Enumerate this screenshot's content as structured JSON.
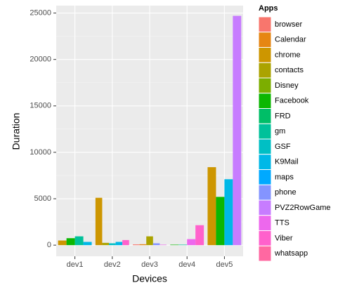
{
  "chart_data": {
    "type": "bar",
    "x_label": "Devices",
    "y_label": "Duration",
    "legend_title": "Apps",
    "categories": [
      "dev1",
      "dev2",
      "dev3",
      "dev4",
      "dev5"
    ],
    "ylim": [
      -1200,
      25800
    ],
    "yticks": [
      0,
      5000,
      10000,
      15000,
      20000,
      25000
    ],
    "grid": true,
    "legend": "right",
    "series": [
      {
        "name": "browser",
        "color": "#F8766D",
        "values": [
          null,
          null,
          80,
          null,
          null
        ]
      },
      {
        "name": "Calendar",
        "color": "#E68613",
        "values": [
          null,
          null,
          100,
          null,
          null
        ]
      },
      {
        "name": "chrome",
        "color": "#CD9600",
        "values": [
          500,
          5100,
          null,
          null,
          8400
        ]
      },
      {
        "name": "contacts",
        "color": "#ABA300",
        "values": [
          null,
          250,
          950,
          null,
          null
        ]
      },
      {
        "name": "Disney",
        "color": "#7CAE00",
        "values": [
          null,
          null,
          null,
          null,
          null
        ]
      },
      {
        "name": "Facebook",
        "color": "#0CB702",
        "values": [
          750,
          null,
          null,
          50,
          5200
        ]
      },
      {
        "name": "FRD",
        "color": "#00BE67",
        "values": [
          null,
          null,
          null,
          null,
          null
        ]
      },
      {
        "name": "gm",
        "color": "#00C19A",
        "values": [
          950,
          null,
          null,
          50,
          null
        ]
      },
      {
        "name": "GSF",
        "color": "#00BFC4",
        "values": [
          null,
          200,
          null,
          null,
          null
        ]
      },
      {
        "name": "K9Mail",
        "color": "#00B8E7",
        "values": [
          350,
          350,
          null,
          null,
          7100
        ]
      },
      {
        "name": "maps",
        "color": "#00A9FF",
        "values": [
          null,
          null,
          null,
          null,
          null
        ]
      },
      {
        "name": "phone",
        "color": "#8494FF",
        "values": [
          null,
          null,
          200,
          null,
          null
        ]
      },
      {
        "name": "PVZ2RowGame",
        "color": "#C77CFF",
        "values": [
          null,
          null,
          null,
          null,
          24700
        ]
      },
      {
        "name": "TTS",
        "color": "#ED68ED",
        "values": [
          null,
          null,
          50,
          650,
          null
        ]
      },
      {
        "name": "Viber",
        "color": "#FF61CC",
        "values": [
          null,
          550,
          null,
          2150,
          null
        ]
      },
      {
        "name": "whatsapp",
        "color": "#FF68A1",
        "values": [
          null,
          null,
          null,
          null,
          null
        ]
      }
    ]
  }
}
